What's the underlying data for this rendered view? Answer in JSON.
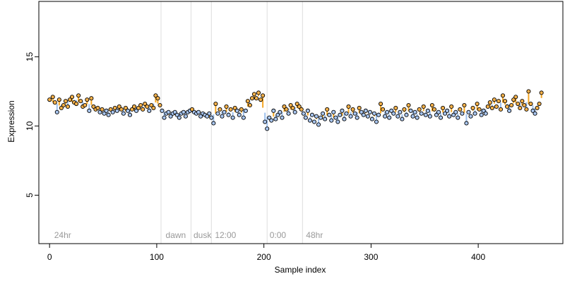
{
  "chart_data": {
    "type": "scatter",
    "title": "",
    "xlabel": "Sample index",
    "ylabel": "Expression",
    "xlim": [
      -10,
      479
    ],
    "ylim": [
      1.5,
      19
    ],
    "x_ticks": [
      0,
      100,
      200,
      300,
      400
    ],
    "y_ticks": [
      5,
      10,
      15
    ],
    "grid": false,
    "region_boundaries": [
      104,
      132,
      151,
      203,
      236
    ],
    "region_labels": [
      {
        "x": 3,
        "label": "24hr"
      },
      {
        "x": 107,
        "label": "dawn"
      },
      {
        "x": 133,
        "label": "dusk"
      },
      {
        "x": 153,
        "label": "12:00"
      },
      {
        "x": 204,
        "label": "0:00"
      },
      {
        "x": 238,
        "label": "48hr"
      }
    ],
    "colors": {
      "point_fill_a": "#f5b14a",
      "point_fill_b": "#a9c6f0",
      "point_outline": "#000000",
      "segment_above": "#f5a623",
      "segment_below": "#9ec1ee",
      "boundary_line": "#dddddd",
      "region_label": "#999999"
    },
    "series": [
      {
        "values": [
          [
            0,
            11.9
          ],
          [
            3,
            12.1
          ],
          [
            5,
            11.7
          ],
          [
            7,
            11.0
          ],
          [
            9,
            11.9
          ],
          [
            11,
            11.3
          ],
          [
            13,
            11.5
          ],
          [
            15,
            11.8
          ],
          [
            17,
            11.4
          ],
          [
            19,
            11.9
          ],
          [
            21,
            12.1
          ],
          [
            23,
            11.7
          ],
          [
            25,
            11.6
          ],
          [
            27,
            12.2
          ],
          [
            29,
            11.8
          ],
          [
            31,
            11.4
          ],
          [
            33,
            11.5
          ],
          [
            35,
            11.9
          ],
          [
            37,
            11.1
          ],
          [
            39,
            12.0
          ],
          [
            41,
            11.4
          ],
          [
            43,
            11.2
          ],
          [
            45,
            11.3
          ],
          [
            47,
            11.0
          ],
          [
            49,
            11.2
          ],
          [
            51,
            10.9
          ],
          [
            53,
            11.1
          ],
          [
            55,
            10.8
          ],
          [
            57,
            11.2
          ],
          [
            59,
            11.0
          ],
          [
            61,
            11.3
          ],
          [
            63,
            11.1
          ],
          [
            65,
            11.4
          ],
          [
            67,
            11.2
          ],
          [
            69,
            10.9
          ],
          [
            71,
            11.3
          ],
          [
            73,
            11.1
          ],
          [
            75,
            10.8
          ],
          [
            77,
            11.2
          ],
          [
            79,
            11.4
          ],
          [
            81,
            11.1
          ],
          [
            83,
            11.3
          ],
          [
            85,
            11.5
          ],
          [
            87,
            11.2
          ],
          [
            89,
            11.6
          ],
          [
            91,
            11.4
          ],
          [
            93,
            11.1
          ],
          [
            95,
            11.5
          ],
          [
            97,
            11.3
          ],
          [
            99,
            12.2
          ],
          [
            101,
            12.0
          ],
          [
            103,
            11.5
          ],
          [
            105,
            11.1
          ],
          [
            107,
            10.6
          ],
          [
            109,
            10.9
          ],
          [
            111,
            11.0
          ],
          [
            113,
            10.7
          ],
          [
            115,
            10.9
          ],
          [
            117,
            11.0
          ],
          [
            119,
            10.8
          ],
          [
            121,
            10.6
          ],
          [
            123,
            10.9
          ],
          [
            125,
            11.0
          ],
          [
            127,
            10.7
          ],
          [
            129,
            11.0
          ],
          [
            131,
            11.1
          ],
          [
            133,
            11.2
          ],
          [
            135,
            11.0
          ],
          [
            137,
            10.9
          ],
          [
            139,
            11.0
          ],
          [
            141,
            10.7
          ],
          [
            143,
            10.9
          ],
          [
            145,
            10.8
          ],
          [
            147,
            10.7
          ],
          [
            149,
            10.9
          ],
          [
            151,
            10.6
          ],
          [
            153,
            10.2
          ],
          [
            155,
            11.6
          ],
          [
            157,
            10.9
          ],
          [
            159,
            11.2
          ],
          [
            161,
            10.7
          ],
          [
            163,
            11.0
          ],
          [
            165,
            11.4
          ],
          [
            167,
            10.8
          ],
          [
            169,
            11.2
          ],
          [
            171,
            10.6
          ],
          [
            173,
            11.3
          ],
          [
            175,
            11.1
          ],
          [
            177,
            10.8
          ],
          [
            179,
            11.2
          ],
          [
            181,
            10.6
          ],
          [
            183,
            11.1
          ],
          [
            185,
            11.8
          ],
          [
            187,
            11.5
          ],
          [
            189,
            12.0
          ],
          [
            191,
            12.3
          ],
          [
            193,
            12.0
          ],
          [
            195,
            12.4
          ],
          [
            197,
            11.9
          ],
          [
            199,
            12.2
          ],
          [
            201,
            10.3
          ],
          [
            203,
            9.8
          ],
          [
            205,
            10.6
          ],
          [
            207,
            10.4
          ],
          [
            209,
            11.1
          ],
          [
            211,
            10.5
          ],
          [
            213,
            10.8
          ],
          [
            215,
            11.0
          ],
          [
            217,
            10.6
          ],
          [
            219,
            11.4
          ],
          [
            221,
            11.2
          ],
          [
            223,
            10.9
          ],
          [
            225,
            11.5
          ],
          [
            227,
            11.3
          ],
          [
            229,
            11.0
          ],
          [
            231,
            11.6
          ],
          [
            233,
            11.4
          ],
          [
            235,
            11.2
          ],
          [
            237,
            10.9
          ],
          [
            239,
            10.6
          ],
          [
            241,
            11.1
          ],
          [
            243,
            10.4
          ],
          [
            245,
            10.8
          ],
          [
            247,
            10.3
          ],
          [
            249,
            10.7
          ],
          [
            251,
            10.1
          ],
          [
            253,
            10.6
          ],
          [
            255,
            10.9
          ],
          [
            257,
            10.5
          ],
          [
            259,
            11.2
          ],
          [
            261,
            10.8
          ],
          [
            263,
            10.4
          ],
          [
            265,
            11.0
          ],
          [
            267,
            10.6
          ],
          [
            269,
            10.3
          ],
          [
            271,
            10.8
          ],
          [
            273,
            11.1
          ],
          [
            275,
            10.5
          ],
          [
            277,
            10.9
          ],
          [
            279,
            11.4
          ],
          [
            281,
            10.7
          ],
          [
            283,
            11.2
          ],
          [
            285,
            10.9
          ],
          [
            287,
            10.6
          ],
          [
            289,
            11.3
          ],
          [
            291,
            11.0
          ],
          [
            293,
            10.8
          ],
          [
            295,
            11.1
          ],
          [
            297,
            10.7
          ],
          [
            299,
            11.0
          ],
          [
            301,
            10.5
          ],
          [
            303,
            10.9
          ],
          [
            305,
            10.3
          ],
          [
            307,
            10.8
          ],
          [
            309,
            11.6
          ],
          [
            311,
            11.2
          ],
          [
            313,
            10.7
          ],
          [
            315,
            11.0
          ],
          [
            317,
            10.6
          ],
          [
            319,
            11.1
          ],
          [
            321,
            10.9
          ],
          [
            323,
            11.3
          ],
          [
            325,
            10.7
          ],
          [
            327,
            11.0
          ],
          [
            329,
            10.5
          ],
          [
            331,
            11.2
          ],
          [
            333,
            10.8
          ],
          [
            335,
            11.5
          ],
          [
            337,
            11.1
          ],
          [
            339,
            10.7
          ],
          [
            341,
            11.0
          ],
          [
            343,
            10.6
          ],
          [
            345,
            11.2
          ],
          [
            347,
            10.9
          ],
          [
            349,
            11.4
          ],
          [
            351,
            10.8
          ],
          [
            353,
            11.1
          ],
          [
            355,
            10.7
          ],
          [
            357,
            11.5
          ],
          [
            359,
            11.2
          ],
          [
            361,
            10.8
          ],
          [
            363,
            11.0
          ],
          [
            365,
            10.6
          ],
          [
            367,
            11.3
          ],
          [
            369,
            10.9
          ],
          [
            371,
            11.1
          ],
          [
            373,
            10.7
          ],
          [
            375,
            11.4
          ],
          [
            377,
            10.8
          ],
          [
            379,
            11.0
          ],
          [
            381,
            10.6
          ],
          [
            383,
            11.2
          ],
          [
            385,
            10.9
          ],
          [
            387,
            11.5
          ],
          [
            389,
            10.2
          ],
          [
            391,
            11.0
          ],
          [
            393,
            10.7
          ],
          [
            395,
            11.3
          ],
          [
            397,
            10.9
          ],
          [
            399,
            11.6
          ],
          [
            401,
            11.2
          ],
          [
            403,
            10.8
          ],
          [
            405,
            11.1
          ],
          [
            407,
            10.9
          ],
          [
            409,
            11.4
          ],
          [
            411,
            11.7
          ],
          [
            413,
            11.3
          ],
          [
            415,
            11.9
          ],
          [
            417,
            11.4
          ],
          [
            419,
            11.8
          ],
          [
            421,
            11.2
          ],
          [
            423,
            12.2
          ],
          [
            425,
            11.8
          ],
          [
            427,
            11.4
          ],
          [
            429,
            11.1
          ],
          [
            431,
            11.5
          ],
          [
            433,
            11.9
          ],
          [
            435,
            12.1
          ],
          [
            437,
            11.6
          ],
          [
            439,
            11.3
          ],
          [
            441,
            11.8
          ],
          [
            443,
            11.5
          ],
          [
            445,
            11.2
          ],
          [
            447,
            12.5
          ],
          [
            449,
            11.6
          ],
          [
            451,
            11.1
          ],
          [
            453,
            10.9
          ],
          [
            455,
            11.3
          ],
          [
            457,
            11.6
          ],
          [
            459,
            12.4
          ]
        ]
      }
    ]
  }
}
